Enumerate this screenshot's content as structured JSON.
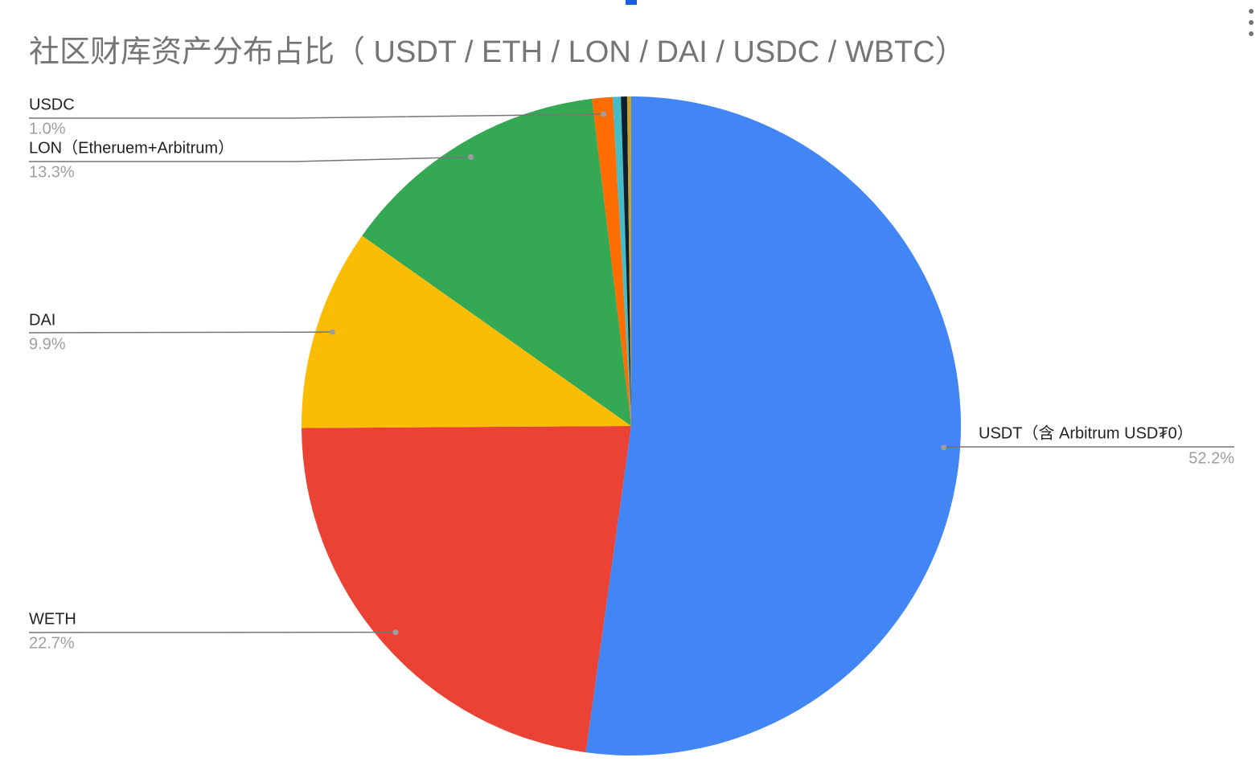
{
  "chart_data": {
    "type": "pie",
    "title": "社区财库资产分布占比（ USDT / ETH / LON / DAI / USDC / WBTC）",
    "categories": [
      "USDT（含 Arbitrum USD₮0）",
      "WETH",
      "DAI",
      "LON（Etheruem+Arbitrum）",
      "USDC",
      null,
      null,
      null
    ],
    "values": [
      52.2,
      22.7,
      9.9,
      13.3,
      1.0,
      0.4,
      0.3,
      0.2
    ],
    "value_labels": [
      "52.2%",
      "22.7%",
      "9.9%",
      "13.3%",
      "1.0%",
      null,
      null,
      null
    ],
    "colors": [
      "#4285f4",
      "#ea4335",
      "#fbbc04",
      "#34a853",
      "#ff6d01",
      "#46bdc6",
      "#0b1f2e",
      "#c9a227"
    ]
  }
}
